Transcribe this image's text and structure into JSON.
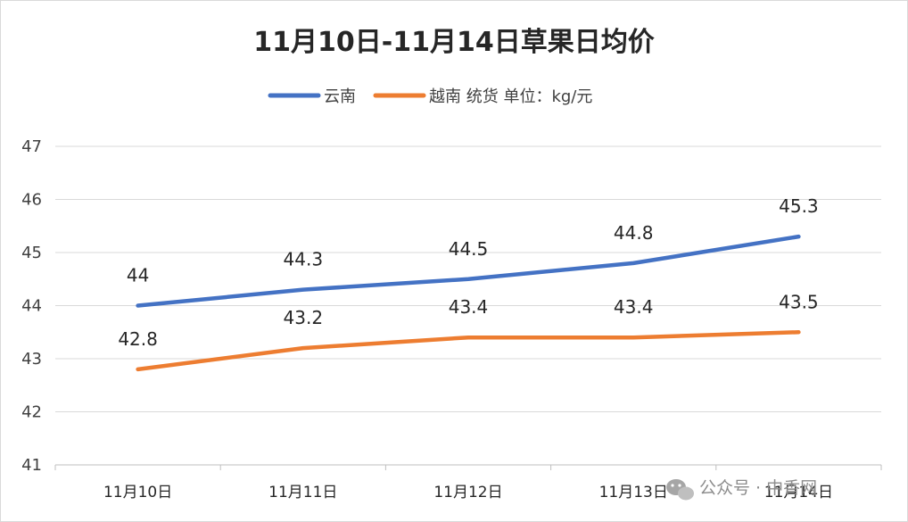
{
  "chart_data": {
    "type": "line",
    "title": "11月10日-11月14日草果日均价",
    "categories": [
      "11月10日",
      "11月11日",
      "11月12日",
      "11月13日",
      "11月14日"
    ],
    "series": [
      {
        "name": "云南",
        "values": [
          44,
          44.3,
          44.5,
          44.8,
          45.3
        ],
        "color": "#4472C4"
      },
      {
        "name": "越南 统货 单位：kg/元",
        "values": [
          42.8,
          43.2,
          43.4,
          43.4,
          43.5
        ],
        "color": "#ED7D31"
      }
    ],
    "ylim": [
      41,
      47
    ],
    "yticks": [
      41,
      42,
      43,
      44,
      45,
      46,
      47
    ],
    "grid": true,
    "legend": "top"
  },
  "watermark": {
    "text": "公众号 · 中香网",
    "icon": "wechat-icon"
  }
}
